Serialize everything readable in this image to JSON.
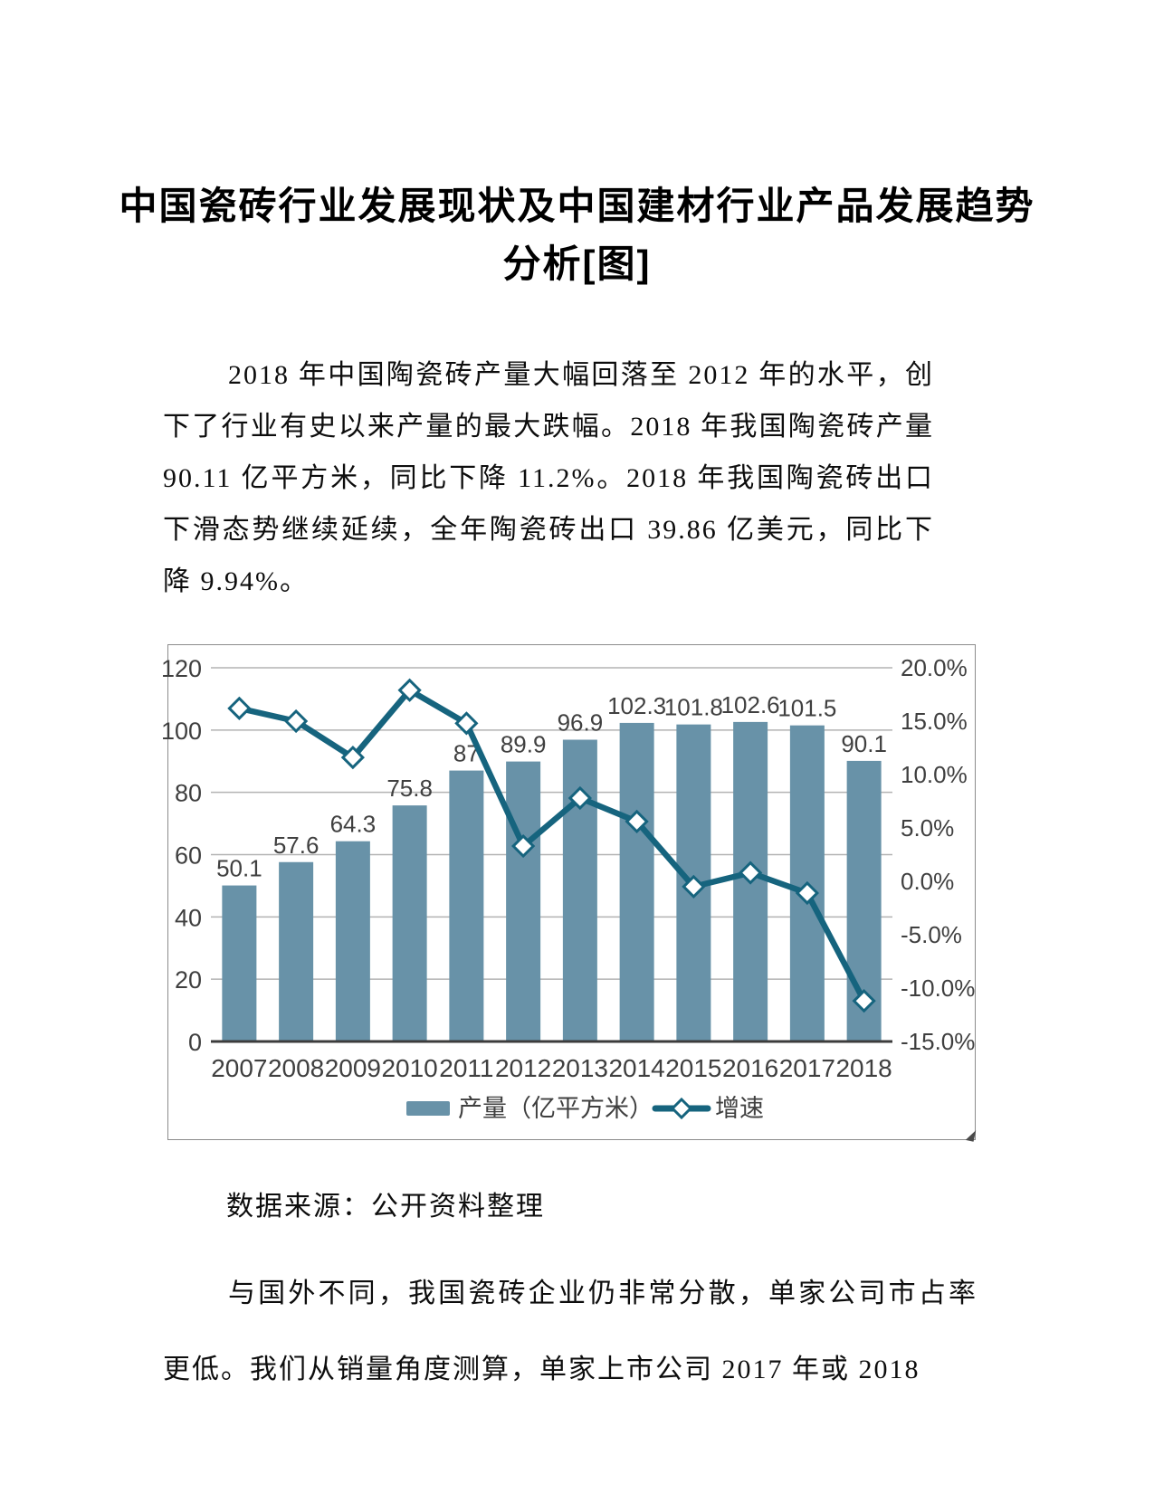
{
  "document": {
    "title": "中国瓷砖行业发展现状及中国建材行业产品发展趋势分析[图]",
    "paragraphs": {
      "intro": "2018 年中国陶瓷砖产量大幅回落至 2012 年的水平，创下了行业有史以来产量的最大跌幅。2018 年我国陶瓷砖产量 90.11 亿平方米，同比下降 11.2%。2018 年我国陶瓷砖出口下滑态势继续延续，全年陶瓷砖出口 39.86 亿美元，同比下降 9.94%。",
      "body2": "与国外不同，我国瓷砖企业仍非常分散，单家公司市占率更低。我们从销量角度测算，单家上市公司 2017 年或 2018"
    },
    "source_note": "数据来源：公开资料整理"
  },
  "chart_data": {
    "type": "bar",
    "subtype": "bar+line-combo",
    "categories": [
      "2007",
      "2008",
      "2009",
      "2010",
      "2011",
      "2012",
      "2013",
      "2014",
      "2015",
      "2016",
      "2017",
      "2018"
    ],
    "series": [
      {
        "name": "产量（亿平方米）",
        "type": "bar",
        "axis": "left",
        "values": [
          50.1,
          57.6,
          64.3,
          75.8,
          87,
          89.9,
          96.9,
          102.3,
          101.8,
          102.6,
          101.5,
          90.1
        ],
        "labels": [
          "50.1",
          "57.6",
          "64.3",
          "75.8",
          "87",
          "89.9",
          "96.9",
          "102.3",
          "101.8",
          "102.6",
          "101.5",
          "90.1"
        ]
      },
      {
        "name": "增速",
        "type": "line",
        "axis": "right",
        "marker": "diamond",
        "values": [
          16.2,
          15.0,
          11.6,
          17.9,
          14.8,
          3.3,
          7.8,
          5.6,
          -0.5,
          0.8,
          -1.1,
          -11.2
        ]
      }
    ],
    "left_axis": {
      "min": 0,
      "max": 120,
      "step": 20,
      "ticks": [
        "0",
        "20",
        "40",
        "60",
        "80",
        "100",
        "120"
      ]
    },
    "right_axis": {
      "min": -15,
      "max": 20,
      "step": 5,
      "ticks_top_to_bottom": [
        "20.0%",
        "15.0%",
        "10.0%",
        "5.0%",
        "0.0%",
        "-5.0%",
        "-10.0%",
        "-15.0%"
      ]
    },
    "grid": true,
    "legend_position": "bottom",
    "legend": [
      {
        "label": "产量（亿平方米）",
        "swatch": "bar"
      },
      {
        "label": "增速",
        "swatch": "line-diamond"
      }
    ],
    "colors": {
      "bar": "#6892a8",
      "line": "#16647e",
      "marker_fill": "#ffffff",
      "grid": "#b3b3b3",
      "axis": "#3c3c3c",
      "tick_text": "#3f3f3f",
      "bar_label_text": "#404040"
    }
  }
}
